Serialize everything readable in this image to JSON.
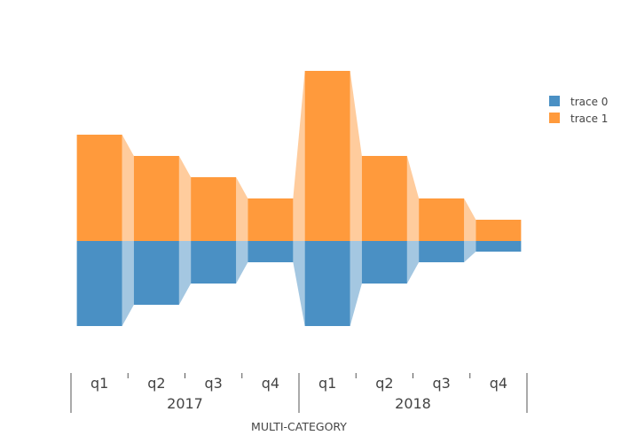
{
  "chart_data": {
    "type": "funnel",
    "xlabel": "MULTI-CATEGORY",
    "groups": [
      {
        "label": "2017",
        "categories": [
          "q1",
          "q2",
          "q3",
          "q4"
        ]
      },
      {
        "label": "2018",
        "categories": [
          "q1",
          "q2",
          "q3",
          "q4"
        ]
      }
    ],
    "series": [
      {
        "name": "trace 0",
        "color": "#4a90c4",
        "values": [
          8,
          6,
          4,
          2,
          8,
          4,
          2,
          1
        ]
      },
      {
        "name": "trace 1",
        "color": "#ff9a3c",
        "values": [
          10,
          8,
          6,
          4,
          16,
          8,
          4,
          2
        ]
      }
    ],
    "legend": {
      "position": "top-right",
      "items": [
        {
          "label": "trace 0",
          "color": "#4a90c4"
        },
        {
          "label": "trace 1",
          "color": "#ff9a3c"
        }
      ]
    }
  }
}
